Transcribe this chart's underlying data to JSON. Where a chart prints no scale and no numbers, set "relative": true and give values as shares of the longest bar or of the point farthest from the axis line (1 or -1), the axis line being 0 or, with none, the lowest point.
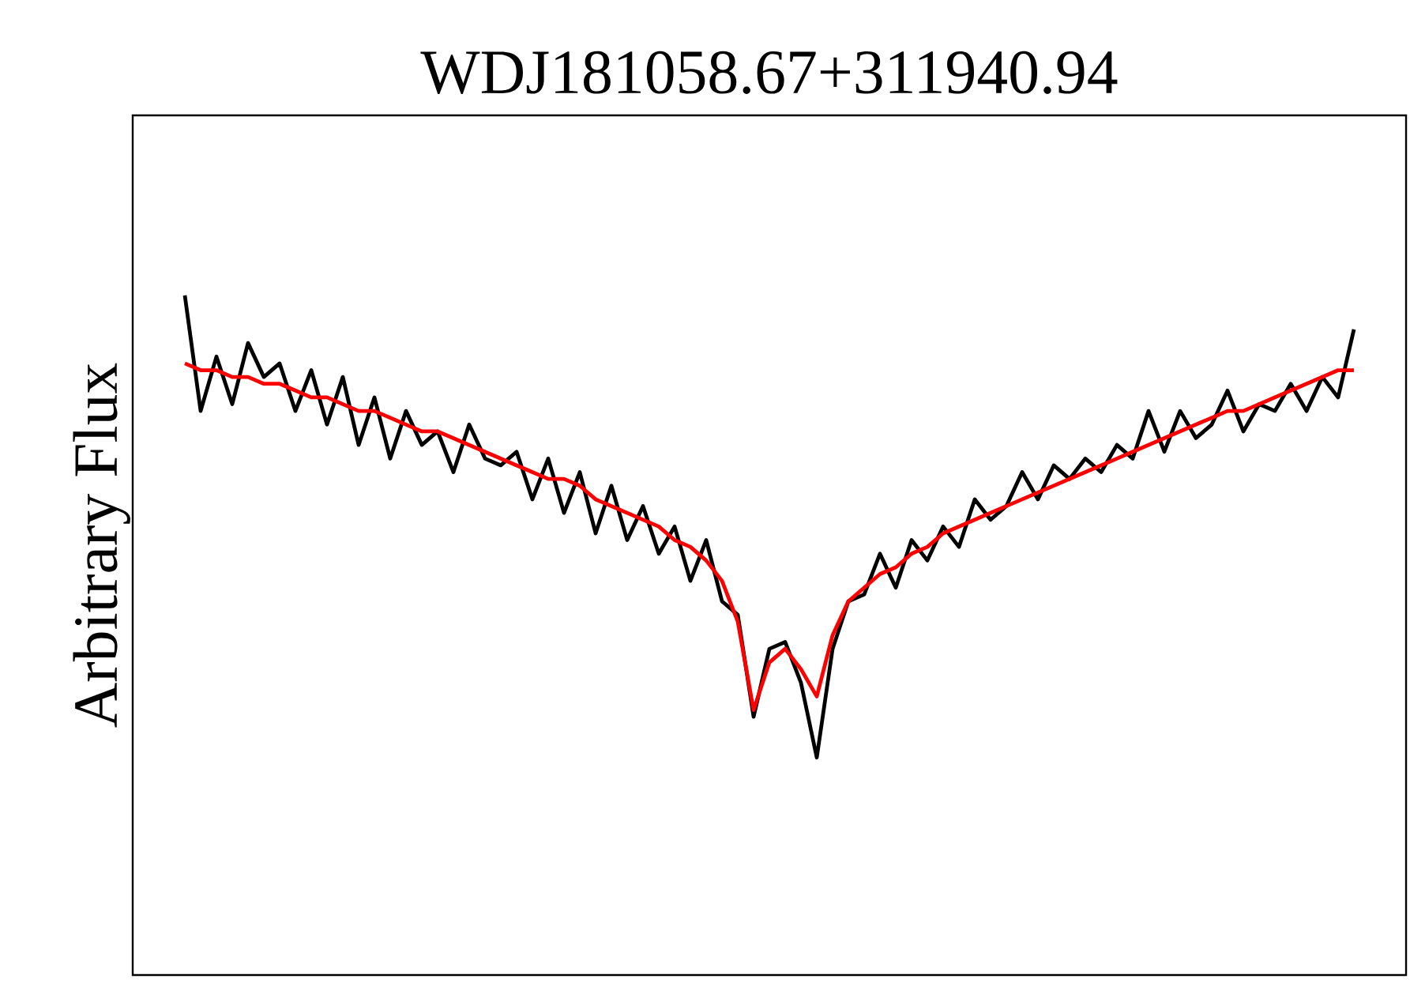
{
  "chart_data": {
    "type": "line",
    "title": "WDJ181058.67+311940.94",
    "ylabel": "Arbitrary Flux",
    "relative": true,
    "marker": "none",
    "line_style": "solid",
    "categories": [
      null,
      null,
      null,
      null,
      null,
      null,
      null,
      null,
      null,
      null,
      null,
      null,
      null,
      null,
      null,
      null,
      null,
      null,
      null,
      null,
      null,
      null,
      null,
      null,
      null,
      null,
      null,
      null,
      null,
      null,
      null,
      null,
      null,
      null,
      null,
      null,
      null,
      null,
      null,
      null,
      null,
      null,
      null,
      null,
      null,
      null,
      null,
      null,
      null,
      null,
      null,
      null,
      null,
      null,
      null,
      null,
      null,
      null,
      null,
      null,
      null,
      null,
      null,
      null,
      null,
      null,
      null,
      null,
      null,
      null,
      null,
      null,
      null,
      null,
      null
    ],
    "series": [
      {
        "color": "#000000",
        "values": [
          1.0,
          0.83,
          0.91,
          0.84,
          0.93,
          0.88,
          0.9,
          0.83,
          0.89,
          0.81,
          0.88,
          0.78,
          0.85,
          0.76,
          0.83,
          0.78,
          0.8,
          0.74,
          0.81,
          0.76,
          0.75,
          0.77,
          0.7,
          0.76,
          0.68,
          0.74,
          0.65,
          0.72,
          0.64,
          0.69,
          0.62,
          0.66,
          0.58,
          0.64,
          0.55,
          0.53,
          0.38,
          0.48,
          0.49,
          0.43,
          0.32,
          0.48,
          0.55,
          0.56,
          0.62,
          0.57,
          0.64,
          0.61,
          0.66,
          0.63,
          0.7,
          0.67,
          0.69,
          0.74,
          0.7,
          0.75,
          0.73,
          0.76,
          0.74,
          0.78,
          0.76,
          0.83,
          0.77,
          0.83,
          0.79,
          0.81,
          0.86,
          0.8,
          0.84,
          0.83,
          0.87,
          0.83,
          0.88,
          0.85,
          0.95
        ]
      },
      {
        "color": "#ff0000",
        "values": [
          0.9,
          0.89,
          0.89,
          0.88,
          0.88,
          0.87,
          0.87,
          0.86,
          0.85,
          0.85,
          0.84,
          0.83,
          0.83,
          0.82,
          0.81,
          0.8,
          0.8,
          0.79,
          0.78,
          0.77,
          0.76,
          0.75,
          0.74,
          0.73,
          0.73,
          0.72,
          0.7,
          0.69,
          0.68,
          0.67,
          0.66,
          0.64,
          0.63,
          0.61,
          0.58,
          0.52,
          0.39,
          0.46,
          0.48,
          0.45,
          0.41,
          0.5,
          0.55,
          0.57,
          0.59,
          0.6,
          0.62,
          0.63,
          0.65,
          0.66,
          0.67,
          0.68,
          0.69,
          0.7,
          0.71,
          0.72,
          0.73,
          0.74,
          0.75,
          0.76,
          0.77,
          0.78,
          0.79,
          0.8,
          0.81,
          0.82,
          0.83,
          0.83,
          0.84,
          0.85,
          0.86,
          0.87,
          0.88,
          0.89,
          0.89
        ]
      }
    ]
  }
}
